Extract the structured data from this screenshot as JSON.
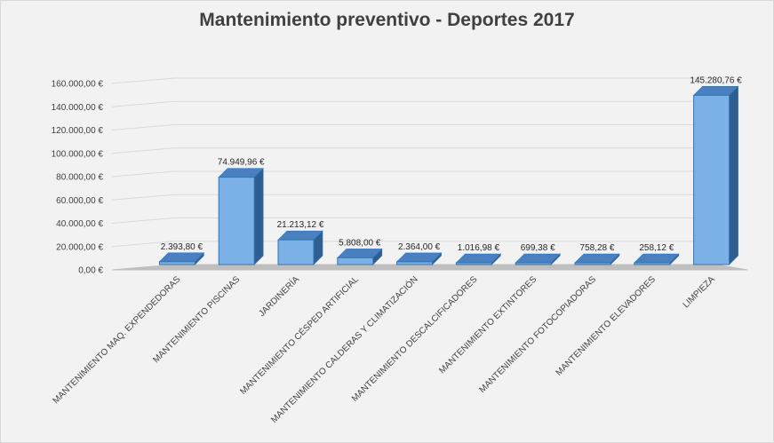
{
  "chart_data": {
    "type": "bar",
    "title": "Mantenimiento preventivo - Deportes 2017",
    "categories": [
      "MANTENIMIENTO MAQ. EXPENDEDORAS",
      "MANTENIMIENTO PISCINAS",
      "JARDINERÍA",
      "MANTENIMIENTO CÉSPED ARTIFICIAL",
      "MANTENIMIENTO CALDERAS Y CLIMATIZACIÓN",
      "MANTENIMIENTO DESCALCIFICADORES",
      "MANTENIMIENTO EXTINTORES",
      "MANTENIMIENTO FOTOCOPIADORAS",
      "MANTENIMIENTO ELEVADORES",
      "LIMPIEZA"
    ],
    "values": [
      2393.8,
      74949.96,
      21213.12,
      5808.0,
      2364.0,
      1016.98,
      699.38,
      758.28,
      258.12,
      145280.76
    ],
    "data_labels": [
      "2.393,80 €",
      "74.949,96 €",
      "21.213,12 €",
      "5.808,00 €",
      "2.364,00 €",
      "1.016,98 €",
      "699,38 €",
      "758,28 €",
      "258,12 €",
      "145.280,76 €"
    ],
    "yticks": [
      "0,00 €",
      "20.000,00 €",
      "40.000,00 €",
      "60.000,00 €",
      "80.000,00 €",
      "100.000,00 €",
      "120.000,00 €",
      "140.000,00 €",
      "160.000,00 €"
    ],
    "ylim": [
      0,
      160000
    ],
    "xlabel": "",
    "ylabel": "",
    "grid": true,
    "legend": "none",
    "style": "3d-column",
    "colors": {
      "front": "#7cb1e8",
      "side": "#2f5f91",
      "top": "#4a7fc0",
      "edge": "#2e75b6",
      "grid": "#d9d9d9",
      "floor": "#bfbfbf"
    }
  }
}
